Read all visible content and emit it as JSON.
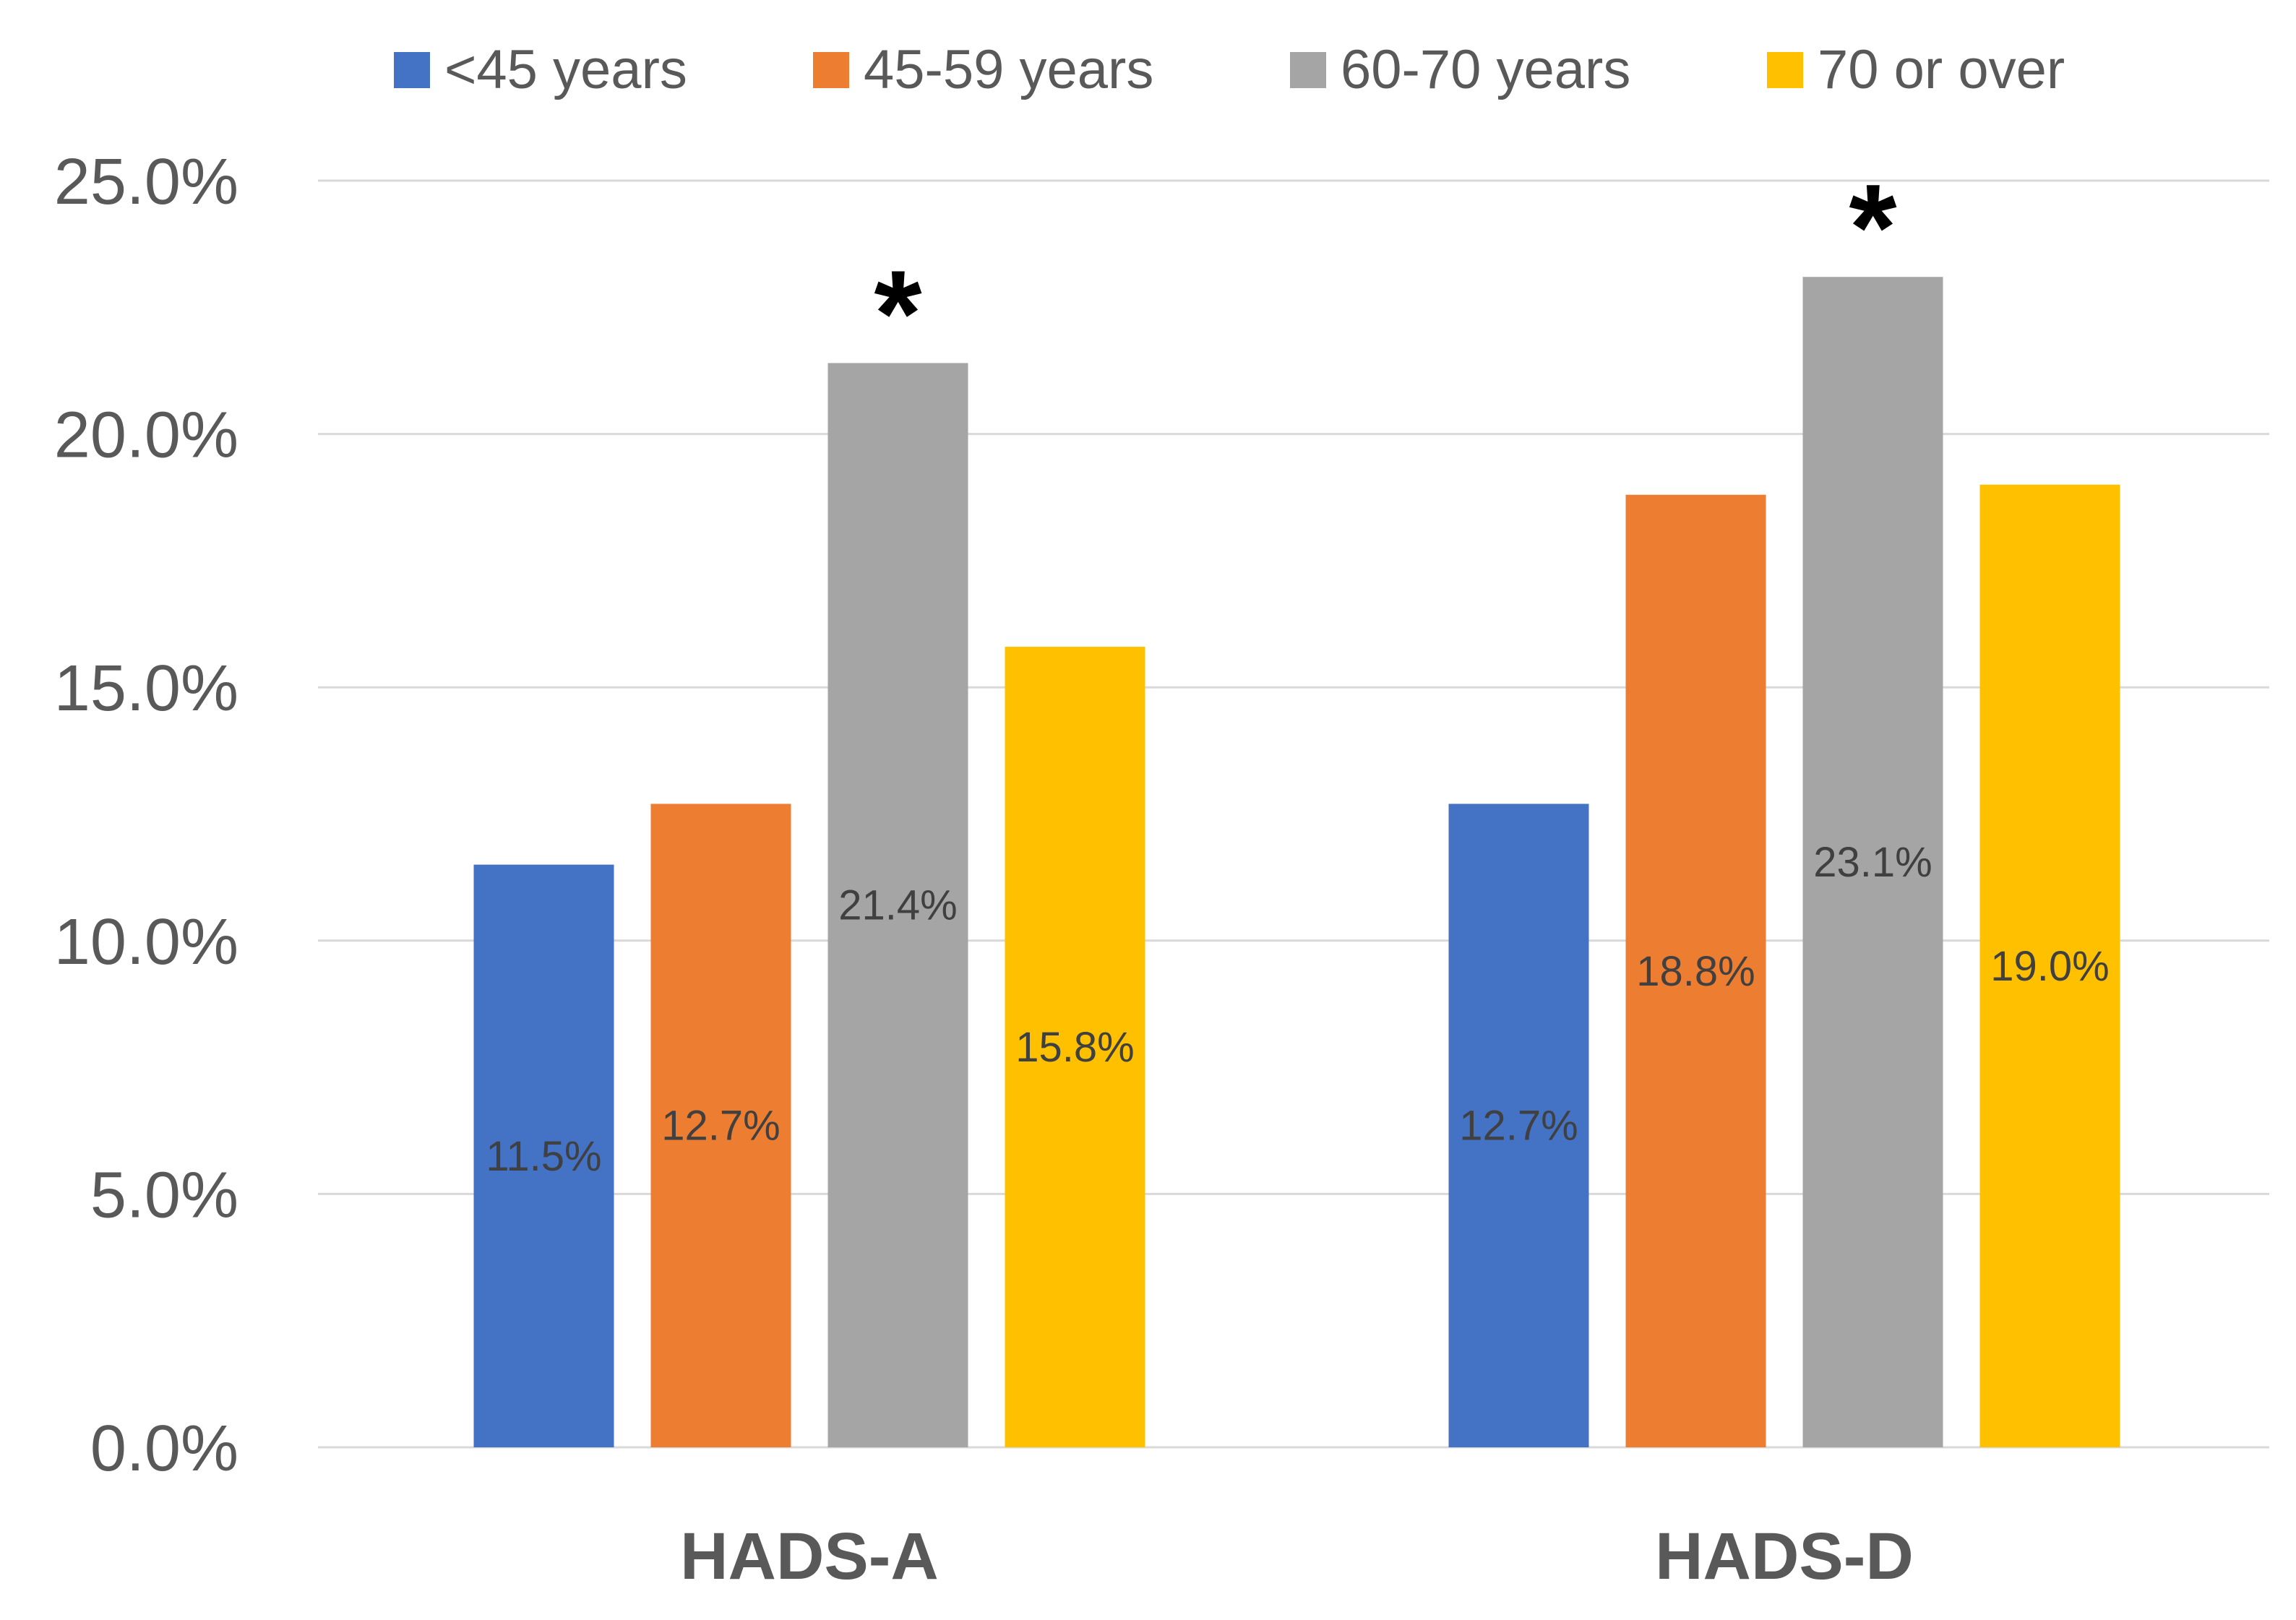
{
  "chart_data": {
    "type": "bar",
    "title": "",
    "xlabel": "",
    "ylabel": "",
    "categories": [
      "HADS-A",
      "HADS-D"
    ],
    "series": [
      {
        "name": "<45 years",
        "color": "#4472C4",
        "values": [
          11.5,
          12.7
        ],
        "labels": [
          "11.5%",
          "12.7%"
        ]
      },
      {
        "name": "45-59 years",
        "color": "#ED7D31",
        "values": [
          12.7,
          18.8
        ],
        "labels": [
          "12.7%",
          "18.8%"
        ]
      },
      {
        "name": "60-70 years",
        "color": "#A5A5A5",
        "values": [
          21.4,
          23.1
        ],
        "labels": [
          "21.4%",
          "23.1%"
        ]
      },
      {
        "name": "70 or over",
        "color": "#FFC000",
        "values": [
          15.8,
          19.0
        ],
        "labels": [
          "15.8%",
          "19.0%"
        ]
      }
    ],
    "ylim": [
      0,
      25
    ],
    "yticks": [
      {
        "value": 0,
        "label": "0.0%"
      },
      {
        "value": 5,
        "label": "5.0%"
      },
      {
        "value": 10,
        "label": "10.0%"
      },
      {
        "value": 15,
        "label": "15.0%"
      },
      {
        "value": 20,
        "label": "20.0%"
      },
      {
        "value": 25,
        "label": "25.0%"
      }
    ],
    "grid": true,
    "legend_position": "top",
    "annotations": [
      {
        "text": "*",
        "category": "HADS-A",
        "series": "60-70 years"
      },
      {
        "text": "*",
        "category": "HADS-D",
        "series": "60-70 years"
      }
    ]
  }
}
